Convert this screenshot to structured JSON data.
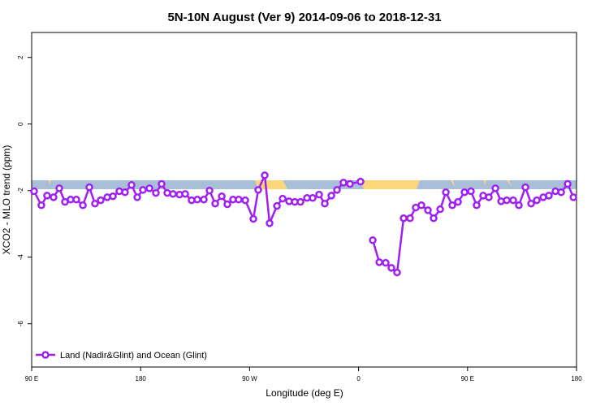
{
  "chart_data": {
    "type": "line",
    "title": "5N-10N August (Ver 9)   2014-09-06 to 2018-12-31",
    "x_label": "Longitude (deg E)",
    "y_label": "XCO2 - MLO trend (ppm)",
    "xlim": [
      90,
      540
    ],
    "xticks": [
      {
        "value": 90,
        "label": "90 E"
      },
      {
        "value": 180,
        "label": "180"
      },
      {
        "value": 270,
        "label": "90 W"
      },
      {
        "value": 360,
        "label": "0"
      },
      {
        "value": 450,
        "label": "90 E"
      },
      {
        "value": 540,
        "label": "180"
      }
    ],
    "ylim": [
      -7.3,
      2.75
    ],
    "yticks": [
      -6,
      -4,
      -2,
      0,
      2
    ],
    "legend": "bottom-left",
    "series": [
      {
        "name": "Land (Nadir&Glint) and Ocean (Glint)",
        "color": "#a020f0",
        "x": [
          92.0,
          98.0,
          102.7,
          108.1,
          112.8,
          117.5,
          122.2,
          126.9,
          132.3,
          137.6,
          142.3,
          147.0,
          152.4,
          157.1,
          162.4,
          167.1,
          172.5,
          177.2,
          181.9,
          187.3,
          192.6,
          197.3,
          202.0,
          206.7,
          212.1,
          216.8,
          222.1,
          226.8,
          232.2,
          236.9,
          241.6,
          247.0,
          251.6,
          256.3,
          261.0,
          266.4,
          273.1,
          277.1,
          282.5,
          286.5,
          292.6,
          297.3,
          302.6,
          307.3,
          312.0,
          317.4,
          322.1,
          327.4,
          332.1,
          337.5,
          342.2,
          347.5,
          352.9,
          361.6,
          366.0,
          371.7,
          377.1,
          382.4,
          387.1,
          391.8,
          397.2,
          402.5,
          407.2,
          411.9,
          417.3,
          422.0,
          427.4,
          432.1,
          437.4,
          442.1,
          447.5,
          452.8,
          457.5,
          462.9,
          467.6,
          473.0,
          477.7,
          482.4,
          487.7,
          492.4,
          497.8,
          502.5,
          507.2,
          512.5,
          517.2,
          522.6,
          527.3,
          532.7,
          537.4
        ],
        "values": [
          -2.02,
          -2.44,
          -2.15,
          -2.2,
          -1.93,
          -2.34,
          -2.27,
          -2.27,
          -2.44,
          -1.9,
          -2.39,
          -2.29,
          -2.2,
          -2.17,
          -2.02,
          -2.05,
          -1.83,
          -2.2,
          -1.98,
          -1.93,
          -2.07,
          -1.8,
          -2.07,
          -2.1,
          -2.12,
          -2.1,
          -2.29,
          -2.27,
          -2.27,
          -2.0,
          -2.39,
          -2.17,
          -2.41,
          -2.27,
          -2.27,
          -2.29,
          -2.85,
          -1.98,
          -1.54,
          -2.98,
          -2.46,
          -2.24,
          -2.32,
          -2.34,
          -2.34,
          -2.22,
          -2.22,
          -2.12,
          -2.39,
          -2.15,
          -1.98,
          -1.76,
          -1.8,
          -1.73,
          null,
          -3.49,
          -4.15,
          -4.17,
          -4.32,
          -4.46,
          -2.83,
          -2.83,
          -2.51,
          -2.44,
          -2.59,
          -2.83,
          -2.56,
          -2.05,
          -2.44,
          -2.34,
          -2.05,
          -2.02,
          -2.44,
          -2.15,
          -2.2,
          -1.93,
          -2.32,
          -2.29,
          -2.29,
          -2.44,
          -1.9,
          -2.39,
          -2.29,
          -2.2,
          -2.15,
          -2.02,
          -2.05,
          -1.8,
          -2.2
        ]
      }
    ]
  }
}
